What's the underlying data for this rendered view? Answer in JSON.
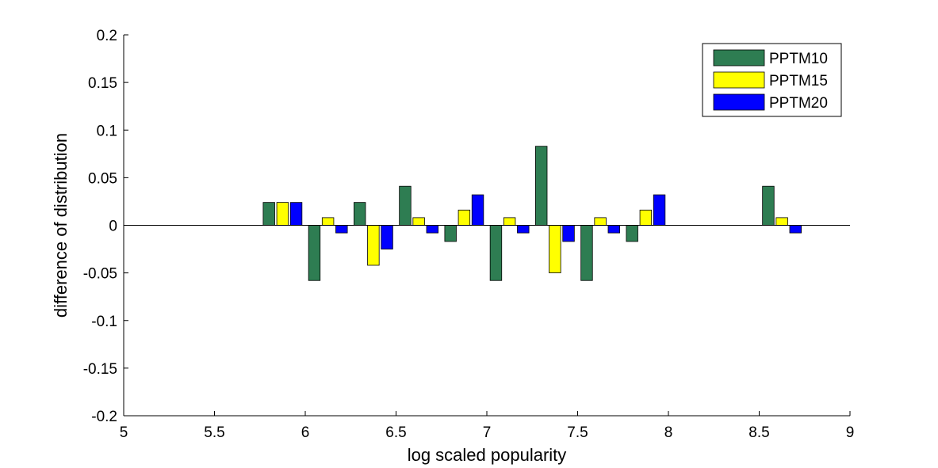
{
  "chart_data": {
    "type": "bar",
    "xlabel": "log scaled popularity",
    "ylabel": "difference of distribution",
    "xlim": [
      5,
      9
    ],
    "ylim": [
      -0.2,
      0.2
    ],
    "xticks": [
      5,
      5.5,
      6,
      6.5,
      7,
      7.5,
      8,
      8.5,
      9
    ],
    "yticks": [
      0.2,
      0.15,
      0.1,
      0.05,
      0,
      -0.05,
      -0.1,
      -0.15,
      -0.2
    ],
    "xtick_labels": [
      "5",
      "5.5",
      "6",
      "6.5",
      "7",
      "7.5",
      "8",
      "8.5",
      "9"
    ],
    "ytick_labels": [
      "0.2",
      "0.15",
      "0.1",
      "0.05",
      "0",
      "-0.05",
      "-0.1",
      "-0.15",
      "-0.2"
    ],
    "categories": [
      5.875,
      6.125,
      6.375,
      6.625,
      6.875,
      7.125,
      7.375,
      7.625,
      7.875,
      8.625
    ],
    "series": [
      {
        "name": "PPTM10",
        "color": "#2e7d52",
        "values": [
          0.024,
          -0.058,
          0.024,
          0.041,
          -0.017,
          -0.058,
          0.083,
          -0.058,
          -0.017,
          0.041
        ]
      },
      {
        "name": "PPTM15",
        "color": "#ffff00",
        "values": [
          0.024,
          0.008,
          -0.042,
          0.008,
          0.016,
          0.008,
          -0.05,
          0.008,
          0.016,
          0.008
        ]
      },
      {
        "name": "PPTM20",
        "color": "#0000ff",
        "values": [
          0.024,
          -0.008,
          -0.025,
          -0.008,
          0.032,
          -0.008,
          -0.017,
          -0.008,
          0.032,
          -0.008
        ]
      }
    ],
    "legend_position": "top-right",
    "grid": false
  }
}
